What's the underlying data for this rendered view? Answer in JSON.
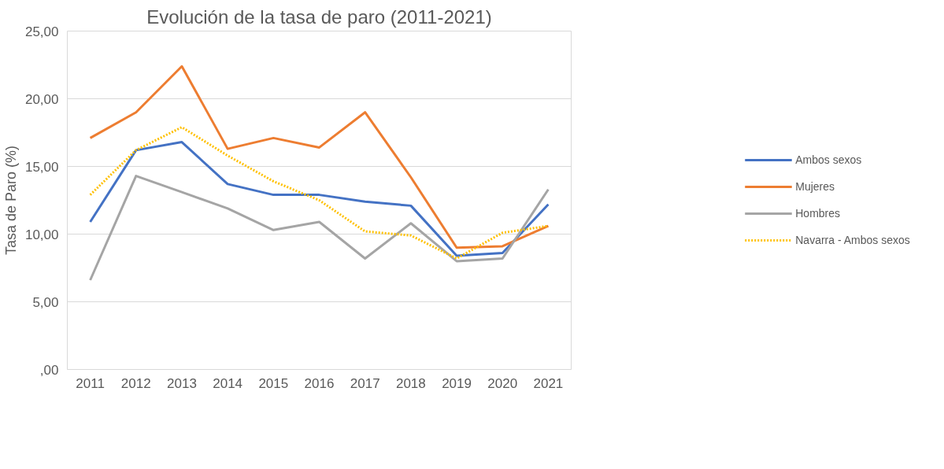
{
  "chart_data": {
    "type": "line",
    "title": "Evolución de la tasa de paro (2011-2021)",
    "ylabel": "Tasa de Paro (%)",
    "categories": [
      "2011",
      "2012",
      "2013",
      "2014",
      "2015",
      "2016",
      "2017",
      "2018",
      "2019",
      "2020",
      "2021"
    ],
    "series": [
      {
        "name": "Ambos sexos",
        "color": "#4472c4",
        "values": [
          10.9,
          16.2,
          16.8,
          13.7,
          12.9,
          12.9,
          12.4,
          12.1,
          8.4,
          8.6,
          12.2
        ]
      },
      {
        "name": "Mujeres",
        "color": "#ed7d31",
        "values": [
          17.1,
          19.0,
          22.4,
          16.3,
          17.1,
          16.4,
          19.0,
          14.2,
          9.0,
          9.1,
          10.6
        ]
      },
      {
        "name": "Hombres",
        "color": "#a5a5a5",
        "values": [
          6.6,
          14.3,
          13.1,
          11.9,
          10.3,
          10.9,
          8.2,
          10.8,
          8.0,
          8.2,
          13.3
        ]
      },
      {
        "name": "Navarra - Ambos sexos",
        "color": "#ffc000",
        "line_style": "dotted",
        "values": [
          12.9,
          16.2,
          17.9,
          15.8,
          13.9,
          12.5,
          10.2,
          9.9,
          8.2,
          10.1,
          10.6
        ]
      }
    ],
    "ylim": [
      0,
      25
    ],
    "yticks": [
      {
        "value": 0,
        "label": ",00"
      },
      {
        "value": 5,
        "label": "5,00"
      },
      {
        "value": 10,
        "label": "10,00"
      },
      {
        "value": 15,
        "label": "15,00"
      },
      {
        "value": 20,
        "label": "20,00"
      },
      {
        "value": 25,
        "label": "25,00"
      }
    ],
    "grid": "y",
    "legend": "right",
    "line_style": "solid",
    "marker": "none"
  }
}
